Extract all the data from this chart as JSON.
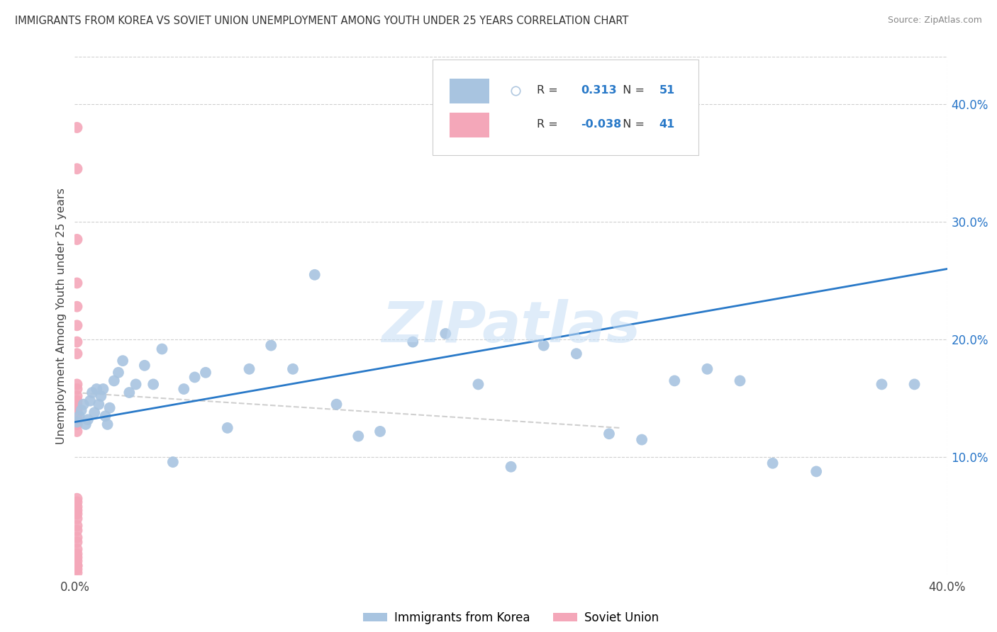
{
  "title": "IMMIGRANTS FROM KOREA VS SOVIET UNION UNEMPLOYMENT AMONG YOUTH UNDER 25 YEARS CORRELATION CHART",
  "source": "Source: ZipAtlas.com",
  "ylabel": "Unemployment Among Youth under 25 years",
  "xlim": [
    0.0,
    0.4
  ],
  "ylim": [
    0.0,
    0.44
  ],
  "korea_R": 0.313,
  "korea_N": 51,
  "soviet_R": -0.038,
  "soviet_N": 41,
  "korea_color": "#a8c4e0",
  "soviet_color": "#f4a7b9",
  "korea_line_color": "#2979c8",
  "soviet_line_color": "#c0c0c0",
  "watermark": "ZIPatlas",
  "korea_x": [
    0.001,
    0.002,
    0.003,
    0.004,
    0.005,
    0.006,
    0.007,
    0.008,
    0.009,
    0.01,
    0.011,
    0.012,
    0.013,
    0.014,
    0.015,
    0.016,
    0.018,
    0.02,
    0.022,
    0.025,
    0.028,
    0.032,
    0.036,
    0.04,
    0.045,
    0.05,
    0.055,
    0.06,
    0.07,
    0.08,
    0.09,
    0.1,
    0.11,
    0.12,
    0.13,
    0.14,
    0.155,
    0.17,
    0.185,
    0.2,
    0.215,
    0.23,
    0.245,
    0.26,
    0.275,
    0.29,
    0.305,
    0.32,
    0.34,
    0.37,
    0.385
  ],
  "korea_y": [
    0.13,
    0.135,
    0.14,
    0.145,
    0.128,
    0.132,
    0.148,
    0.155,
    0.138,
    0.158,
    0.145,
    0.152,
    0.158,
    0.135,
    0.128,
    0.142,
    0.165,
    0.172,
    0.182,
    0.155,
    0.162,
    0.178,
    0.162,
    0.192,
    0.096,
    0.158,
    0.168,
    0.172,
    0.125,
    0.175,
    0.195,
    0.175,
    0.255,
    0.145,
    0.118,
    0.122,
    0.198,
    0.205,
    0.162,
    0.092,
    0.195,
    0.188,
    0.12,
    0.115,
    0.165,
    0.175,
    0.165,
    0.095,
    0.088,
    0.162,
    0.162
  ],
  "soviet_x": [
    0.001,
    0.001,
    0.001,
    0.001,
    0.001,
    0.001,
    0.001,
    0.001,
    0.001,
    0.001,
    0.001,
    0.001,
    0.001,
    0.001,
    0.001,
    0.001,
    0.001,
    0.001,
    0.001,
    0.001,
    0.001,
    0.001,
    0.001,
    0.001,
    0.001,
    0.001,
    0.001,
    0.001,
    0.001,
    0.001,
    0.001,
    0.001,
    0.001,
    0.001,
    0.001,
    0.001,
    0.001,
    0.001,
    0.001,
    0.001,
    0.001
  ],
  "soviet_y": [
    0.38,
    0.345,
    0.285,
    0.248,
    0.228,
    0.212,
    0.198,
    0.188,
    0.162,
    0.152,
    0.148,
    0.142,
    0.138,
    0.132,
    0.128,
    0.158,
    0.145,
    0.14,
    0.135,
    0.128,
    0.065,
    0.062,
    0.055,
    0.058,
    0.052,
    0.048,
    0.042,
    0.038,
    0.032,
    0.028,
    0.022,
    0.015,
    0.008,
    0.005,
    0.002,
    0.012,
    0.018,
    0.142,
    0.132,
    0.122,
    0.008
  ],
  "korea_line_start_y": 0.13,
  "korea_line_end_y": 0.26,
  "soviet_line_start_y": 0.155,
  "soviet_line_end_y": 0.125
}
